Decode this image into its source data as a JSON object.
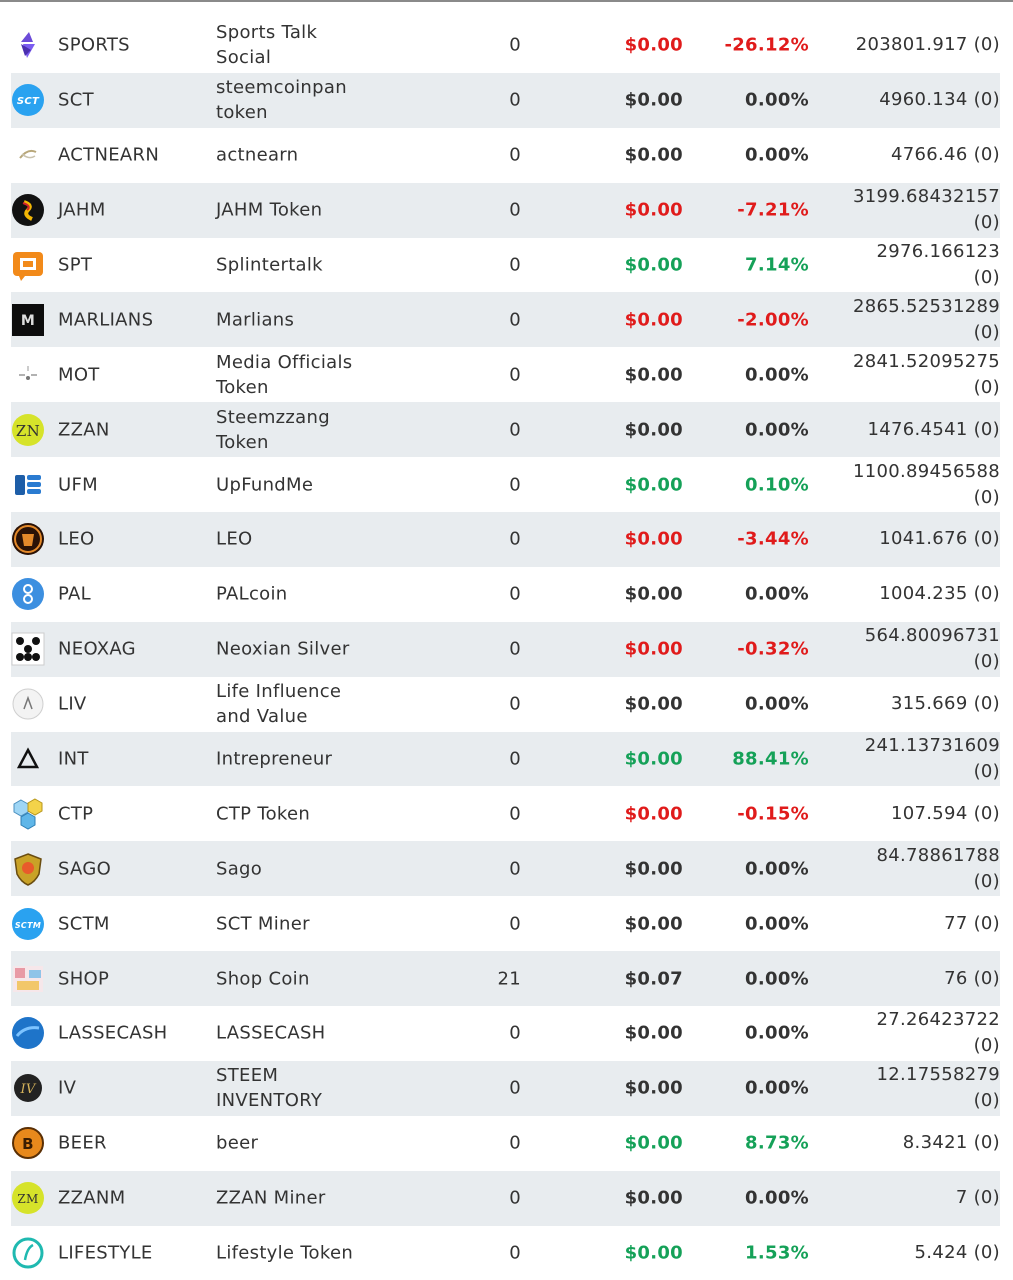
{
  "colors": {
    "negative": "#e01b1b",
    "positive": "#15a158",
    "neutral": "#333333",
    "row_alt": "#e8ecef"
  },
  "tokens": [
    {
      "symbol": "SPORTS",
      "name": "Sports Talk Social",
      "balance": "0",
      "price": "$0.00",
      "change": "-26.12%",
      "supply": "203801.917 (0)",
      "trend": "neg",
      "icon": "sports-icon"
    },
    {
      "symbol": "SCT",
      "name": "steemcoinpan token",
      "balance": "0",
      "price": "$0.00",
      "change": "0.00%",
      "supply": "4960.134 (0)",
      "trend": "neu",
      "icon": "sct-icon"
    },
    {
      "symbol": "ACTNEARN",
      "name": "actnearn",
      "balance": "0",
      "price": "$0.00",
      "change": "0.00%",
      "supply": "4766.46 (0)",
      "trend": "neu",
      "icon": "actnearn-icon"
    },
    {
      "symbol": "JAHM",
      "name": "JAHM Token",
      "balance": "0",
      "price": "$0.00",
      "change": "-7.21%",
      "supply": "3199.68432157 (0)",
      "trend": "neg",
      "icon": "jahm-icon"
    },
    {
      "symbol": "SPT",
      "name": "Splintertalk",
      "balance": "0",
      "price": "$0.00",
      "change": "7.14%",
      "supply": "2976.166123 (0)",
      "trend": "pos",
      "icon": "spt-icon"
    },
    {
      "symbol": "MARLIANS",
      "name": "Marlians",
      "balance": "0",
      "price": "$0.00",
      "change": "-2.00%",
      "supply": "2865.52531289 (0)",
      "trend": "neg",
      "icon": "marlians-icon"
    },
    {
      "symbol": "MOT",
      "name": "Media Officials Token",
      "balance": "0",
      "price": "$0.00",
      "change": "0.00%",
      "supply": "2841.52095275 (0)",
      "trend": "neu",
      "icon": "mot-icon"
    },
    {
      "symbol": "ZZAN",
      "name": "Steemzzang Token",
      "balance": "0",
      "price": "$0.00",
      "change": "0.00%",
      "supply": "1476.4541 (0)",
      "trend": "neu",
      "icon": "zzan-icon"
    },
    {
      "symbol": "UFM",
      "name": "UpFundMe",
      "balance": "0",
      "price": "$0.00",
      "change": "0.10%",
      "supply": "1100.89456588 (0)",
      "trend": "pos",
      "icon": "ufm-icon"
    },
    {
      "symbol": "LEO",
      "name": "LEO",
      "balance": "0",
      "price": "$0.00",
      "change": "-3.44%",
      "supply": "1041.676 (0)",
      "trend": "neg",
      "icon": "leo-icon"
    },
    {
      "symbol": "PAL",
      "name": "PALcoin",
      "balance": "0",
      "price": "$0.00",
      "change": "0.00%",
      "supply": "1004.235 (0)",
      "trend": "neu",
      "icon": "pal-icon"
    },
    {
      "symbol": "NEOXAG",
      "name": "Neoxian Silver",
      "balance": "0",
      "price": "$0.00",
      "change": "-0.32%",
      "supply": "564.80096731 (0)",
      "trend": "neg",
      "icon": "neoxag-icon"
    },
    {
      "symbol": "LIV",
      "name": "Life Influence and Value",
      "balance": "0",
      "price": "$0.00",
      "change": "0.00%",
      "supply": "315.669 (0)",
      "trend": "neu",
      "icon": "liv-icon"
    },
    {
      "symbol": "INT",
      "name": "Intrepreneur",
      "balance": "0",
      "price": "$0.00",
      "change": "88.41%",
      "supply": "241.13731609 (0)",
      "trend": "pos",
      "icon": "int-icon"
    },
    {
      "symbol": "CTP",
      "name": "CTP Token",
      "balance": "0",
      "price": "$0.00",
      "change": "-0.15%",
      "supply": "107.594 (0)",
      "trend": "neg",
      "icon": "ctp-icon"
    },
    {
      "symbol": "SAGO",
      "name": "Sago",
      "balance": "0",
      "price": "$0.00",
      "change": "0.00%",
      "supply": "84.78861788 (0)",
      "trend": "neu",
      "icon": "sago-icon"
    },
    {
      "symbol": "SCTM",
      "name": "SCT Miner",
      "balance": "0",
      "price": "$0.00",
      "change": "0.00%",
      "supply": "77 (0)",
      "trend": "neu",
      "icon": "sctm-icon"
    },
    {
      "symbol": "SHOP",
      "name": "Shop Coin",
      "balance": "21",
      "price": "$0.07",
      "change": "0.00%",
      "supply": "76 (0)",
      "trend": "neu",
      "icon": "shop-icon"
    },
    {
      "symbol": "LASSECASH",
      "name": "LASSECASH",
      "balance": "0",
      "price": "$0.00",
      "change": "0.00%",
      "supply": "27.26423722 (0)",
      "trend": "neu",
      "icon": "lassecash-icon"
    },
    {
      "symbol": "IV",
      "name": "STEEM INVENTORY",
      "balance": "0",
      "price": "$0.00",
      "change": "0.00%",
      "supply": "12.17558279 (0)",
      "trend": "neu",
      "icon": "iv-icon"
    },
    {
      "symbol": "BEER",
      "name": "beer",
      "balance": "0",
      "price": "$0.00",
      "change": "8.73%",
      "supply": "8.3421 (0)",
      "trend": "pos",
      "icon": "beer-icon"
    },
    {
      "symbol": "ZZANM",
      "name": "ZZAN Miner",
      "balance": "0",
      "price": "$0.00",
      "change": "0.00%",
      "supply": "7 (0)",
      "trend": "neu",
      "icon": "zzanm-icon"
    },
    {
      "symbol": "LIFESTYLE",
      "name": "Lifestyle Token",
      "balance": "0",
      "price": "$0.00",
      "change": "1.53%",
      "supply": "5.424 (0)",
      "trend": "pos",
      "icon": "lifestyle-icon"
    }
  ]
}
